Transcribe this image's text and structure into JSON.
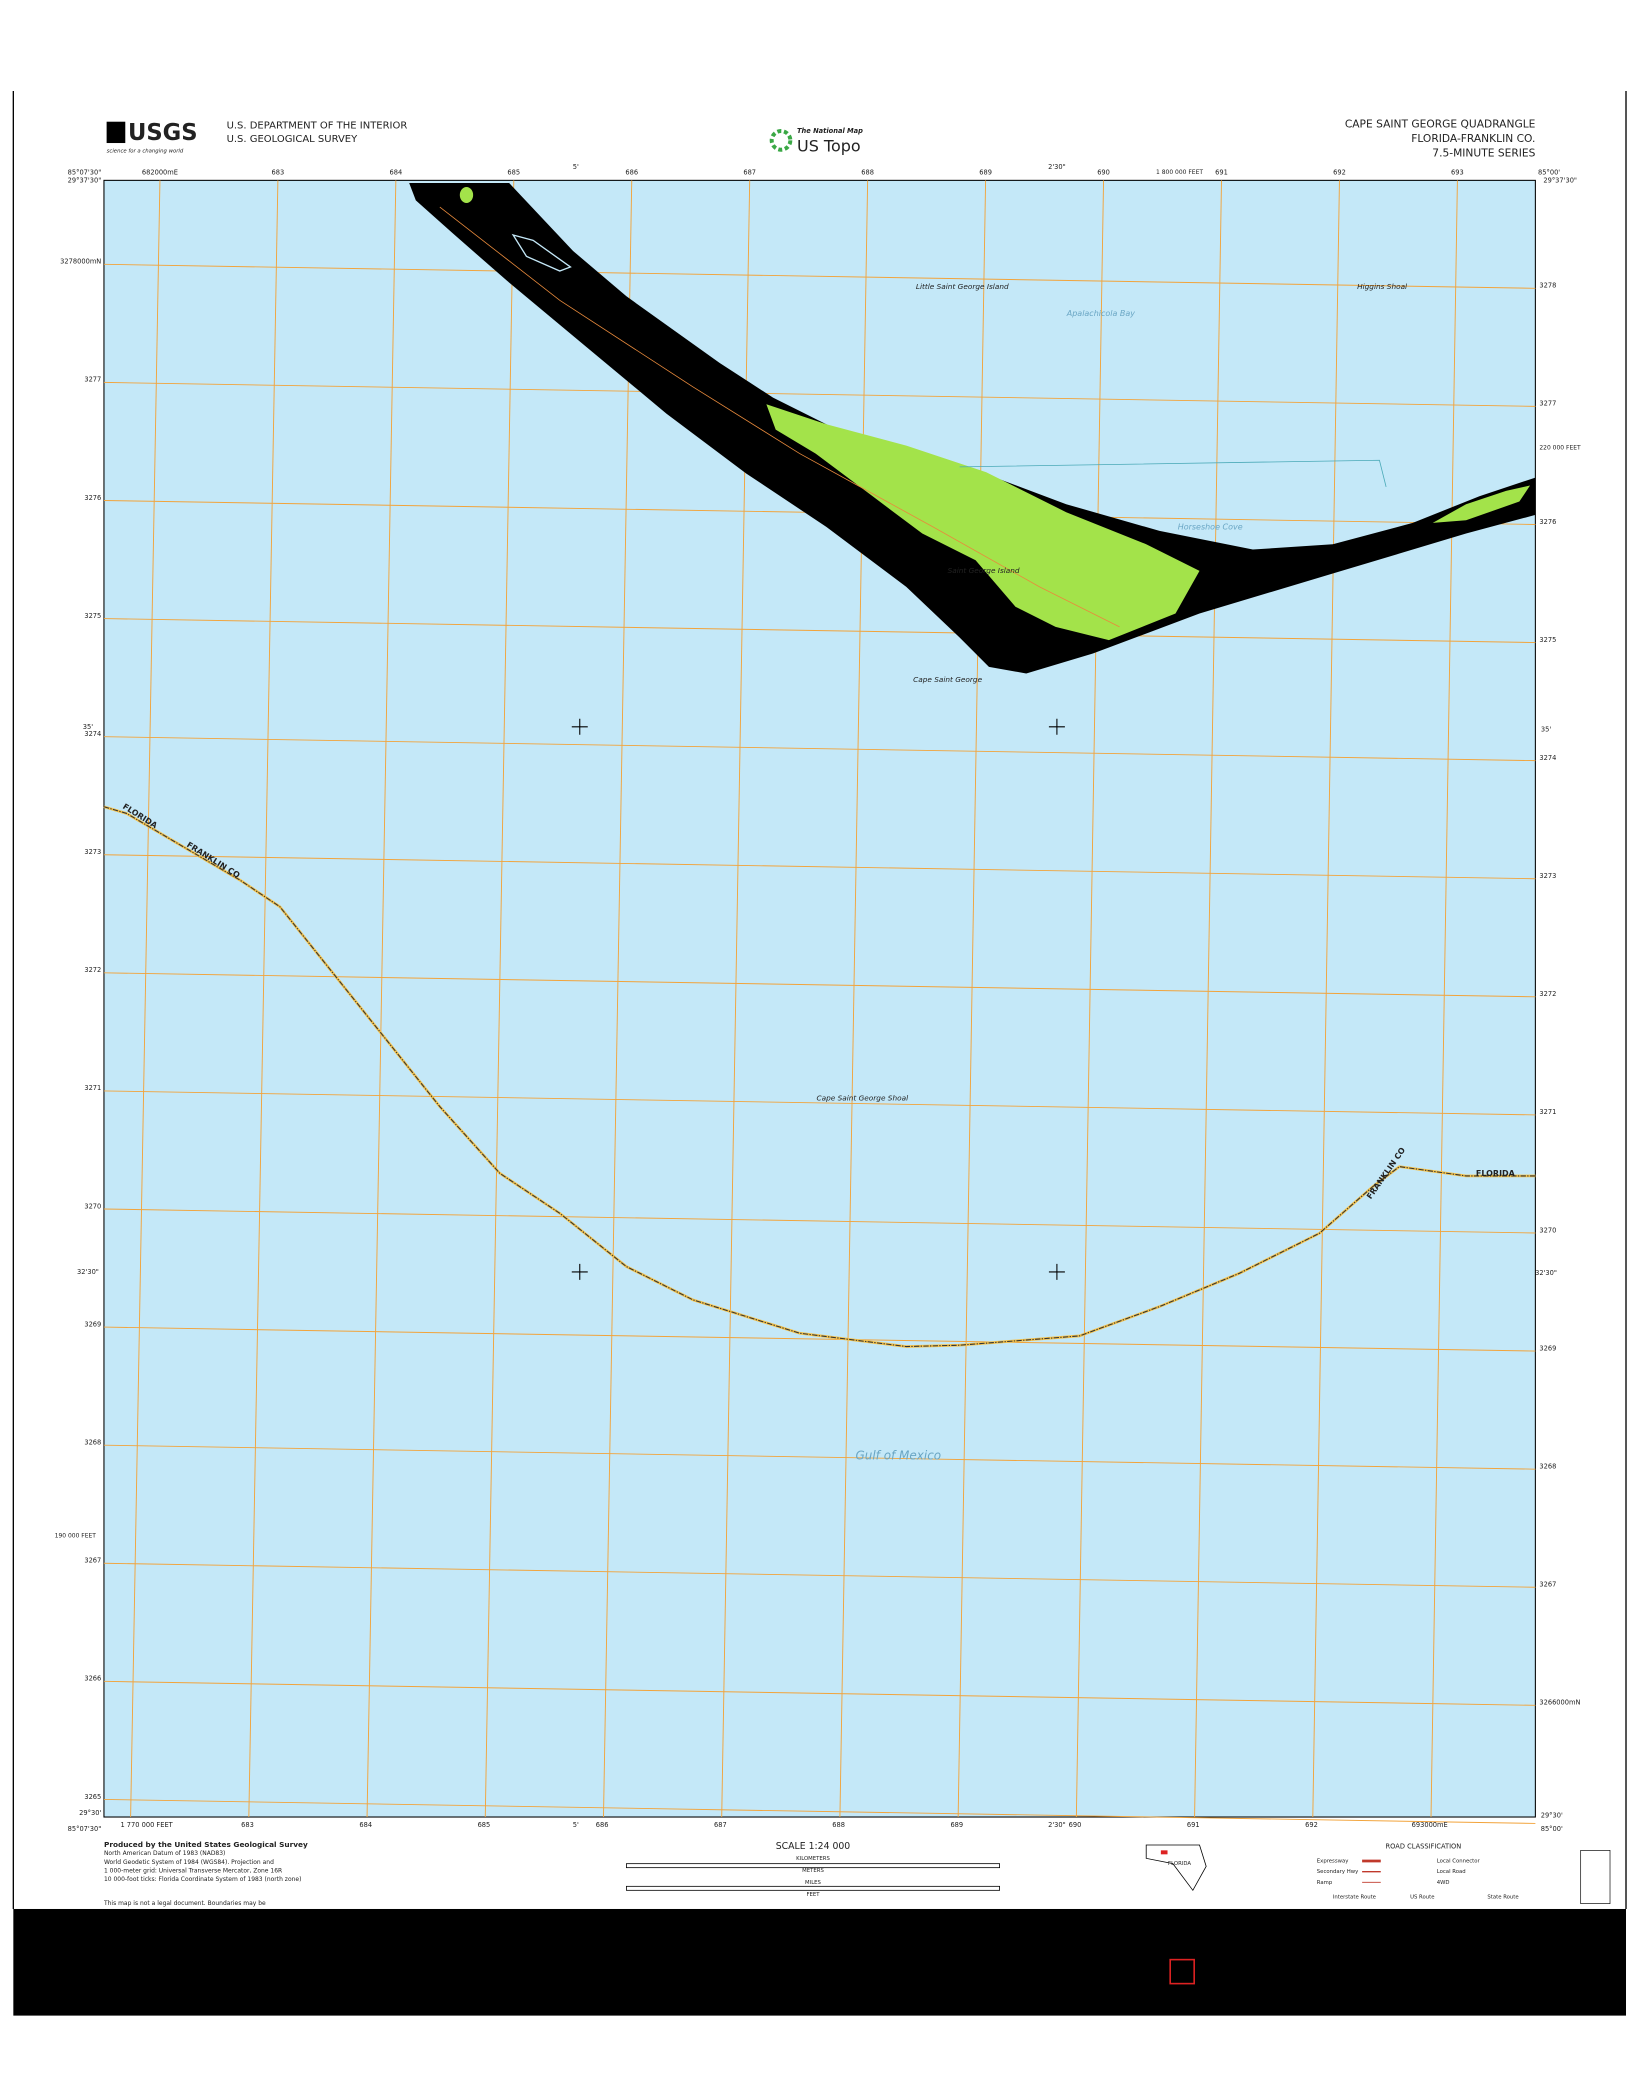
{
  "header": {
    "agency": [
      "U.S. DEPARTMENT OF THE INTERIOR",
      "U.S. GEOLOGICAL SURVEY"
    ],
    "logo": "USGS",
    "logo_tagline": "science for a changing world",
    "product": "The National Map",
    "product_name": "US Topo",
    "quadrangle": "CAPE SAINT GEORGE QUADRANGLE",
    "location": "FLORIDA-FRANKLIN CO.",
    "series": "7.5-MINUTE SERIES"
  },
  "map": {
    "corners": [
      "85°07'30\"",
      "29°37'30\"",
      "85°00'",
      "29°37'30\"",
      "29°30'",
      "85°07'30\"",
      "29°30'",
      "85°00'"
    ],
    "minute_labels": [
      "5'",
      "2'30\"",
      "5'",
      "2'30\"",
      "35'",
      "35'",
      "32'30\"",
      "32'30\""
    ],
    "top_eastings": [
      "682000mE",
      "683",
      "684",
      "685",
      "686",
      "687",
      "688",
      "689",
      "690",
      "691",
      "692",
      "693"
    ],
    "bottom_eastings": [
      "1 770 000 FEET",
      "683",
      "684",
      "685",
      "686",
      "687",
      "688",
      "689",
      "690",
      "691",
      "692",
      "693000mE"
    ],
    "left_northings": [
      "3278000mN",
      "3277",
      "3276",
      "3275",
      "3274",
      "3273",
      "3272",
      "3271",
      "3270",
      "3269",
      "3268",
      "3267",
      "3266",
      "3265"
    ],
    "right_northings": [
      "3278",
      "3277",
      "3276",
      "3275",
      "3274",
      "3273",
      "3272",
      "3271",
      "3270",
      "3269",
      "3268",
      "3267",
      "3266000mN"
    ],
    "feet_labels": [
      "1 800 000 FEET",
      "220 000 FEET",
      "190 000 FEET"
    ],
    "place_names": [
      "Little Saint George Island",
      "Higgins Shoal",
      "Saint George Island",
      "Cape Saint George",
      "Cape Saint George Shoal"
    ],
    "water_names": [
      "Apalachicola Bay",
      "Horseshoe Cove",
      "Gulf of Mexico"
    ],
    "boundary_labels": [
      "FLORIDA",
      "FRANKLIN CO",
      "FRANKLIN CO",
      "FLORIDA"
    ]
  },
  "footer": {
    "credits": [
      "Produced by the United States Geological Survey",
      "North American Datum of 1983 (NAD83)",
      "World Geodetic System of 1984 (WGS84). Projection and",
      "1 000-meter grid: Universal Transverse Mercator, Zone 16R",
      "10 000-foot ticks: Florida Coordinate System of 1983 (north zone)",
      "This map is not a legal document. Boundaries may be"
    ],
    "scale": "SCALE 1:24 000",
    "scale_units": [
      "KILOMETERS",
      "METERS",
      "MILES",
      "FEET"
    ],
    "road_classification": "ROAD CLASSIFICATION",
    "road_types": [
      "Expressway",
      "Secondary Hwy",
      "Ramp",
      "Local Connector",
      "Local Road",
      "4WD",
      "Interstate Route",
      "US Route",
      "State Route"
    ],
    "state": "FLORIDA"
  }
}
